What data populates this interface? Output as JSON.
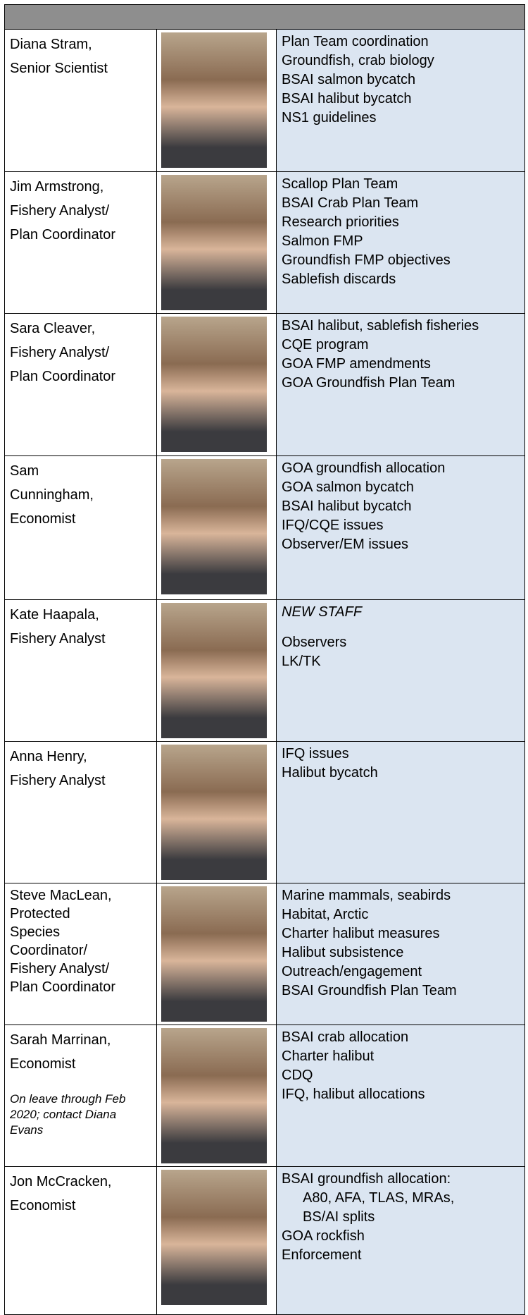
{
  "staff": [
    {
      "name_lines": [
        "Diana Stram,",
        "Senior Scientist"
      ],
      "duties": [
        "Plan Team coordination",
        "Groundfish, crab biology",
        "BSAI salmon bycatch",
        "BSAI halibut bycatch",
        "NS1 guidelines"
      ]
    },
    {
      "name_lines": [
        "Jim Armstrong,",
        "Fishery Analyst/",
        "Plan Coordinator"
      ],
      "duties": [
        "Scallop Plan Team",
        "BSAI Crab Plan Team",
        "Research priorities",
        "Salmon FMP",
        "Groundfish FMP objectives",
        "Sablefish discards"
      ]
    },
    {
      "name_lines": [
        "Sara Cleaver,",
        "Fishery Analyst/",
        "Plan Coordinator"
      ],
      "duties": [
        "BSAI halibut, sablefish fisheries",
        "CQE program",
        "GOA FMP amendments",
        "GOA Groundfish Plan Team"
      ]
    },
    {
      "name_lines": [
        "Sam",
        "Cunningham,",
        "Economist"
      ],
      "duties": [
        "GOA groundfish allocation",
        "GOA salmon bycatch",
        "BSAI halibut bycatch",
        "IFQ/CQE issues",
        "Observer/EM issues"
      ]
    },
    {
      "name_lines": [
        "Kate Haapala,",
        "Fishery Analyst"
      ],
      "duties_note": "NEW STAFF",
      "duties": [
        "Observers",
        "LK/TK"
      ]
    },
    {
      "name_lines": [
        "Anna Henry,",
        "Fishery Analyst"
      ],
      "duties": [
        "IFQ issues",
        "Halibut bycatch"
      ]
    },
    {
      "name_lines": [
        "Steve MacLean,",
        "Protected",
        "Species",
        "Coordinator/",
        "Fishery Analyst/",
        "Plan Coordinator"
      ],
      "duties": [
        "Marine mammals, seabirds",
        "Habitat, Arctic",
        "Charter halibut measures",
        "Halibut subsistence",
        "Outreach/engagement",
        "BSAI Groundfish Plan Team"
      ]
    },
    {
      "name_lines": [
        "Sarah Marrinan,",
        "Economist"
      ],
      "note": "On leave through Feb 2020; contact Diana Evans",
      "duties": [
        "BSAI crab allocation",
        "Charter halibut",
        "CDQ",
        "IFQ, halibut allocations"
      ]
    },
    {
      "name_lines": [
        "Jon McCracken,",
        "Economist"
      ],
      "duties": [
        {
          "text": "BSAI groundfish allocation:",
          "sub": [
            "A80, AFA, TLAS, MRAs,",
            "BS/AI splits"
          ]
        },
        "GOA rockfish",
        "Enforcement"
      ]
    }
  ]
}
